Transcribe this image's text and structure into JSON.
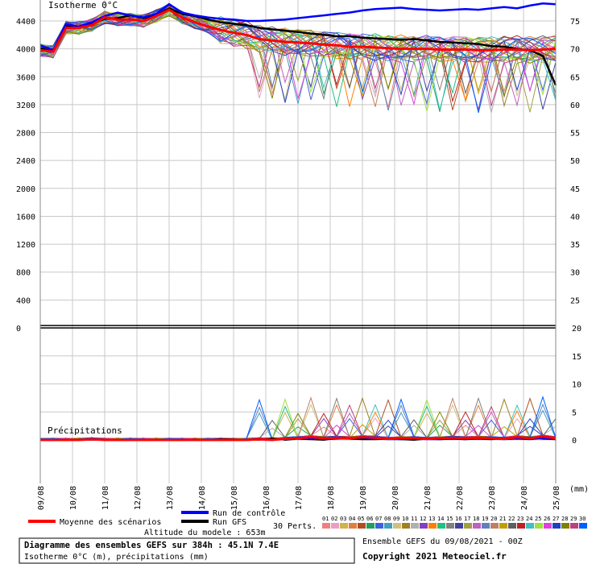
{
  "chart_data": {
    "type": "line",
    "x_dates": [
      "09/08",
      "10/08",
      "11/08",
      "12/08",
      "13/08",
      "14/08",
      "15/08",
      "16/08",
      "17/08",
      "18/08",
      "19/08",
      "20/08",
      "21/08",
      "22/08",
      "23/08",
      "24/08",
      "25/08"
    ],
    "x_unit": "(mm)",
    "upper": {
      "title": "Isotherme 0°C",
      "left_ticks": [
        0,
        400,
        800,
        1200,
        1600,
        2000,
        2400,
        2800,
        3200,
        3600,
        4000,
        4400
      ],
      "right_ticks": [
        25,
        30,
        35,
        40,
        45,
        50,
        55,
        60,
        65,
        70,
        75
      ],
      "ylim": [
        0,
        4700
      ],
      "mean_scenarios_m": [
        3980,
        3960,
        4300,
        4300,
        4340,
        4450,
        4420,
        4420,
        4400,
        4470,
        4560,
        4450,
        4380,
        4320,
        4270,
        4230,
        4200,
        4140,
        4120,
        4100,
        4090,
        4080,
        4060,
        4050,
        4030,
        4030,
        4020,
        4010,
        4000,
        4000,
        4000,
        3990,
        3990,
        3990,
        3980,
        3980,
        3990,
        3990,
        3980,
        3990,
        4000
      ],
      "control_run_m": [
        4050,
        3980,
        4350,
        4320,
        4380,
        4470,
        4520,
        4480,
        4450,
        4500,
        4640,
        4520,
        4480,
        4450,
        4430,
        4420,
        4400,
        4400,
        4410,
        4420,
        4440,
        4460,
        4480,
        4500,
        4520,
        4550,
        4570,
        4580,
        4590,
        4570,
        4560,
        4550,
        4560,
        4570,
        4560,
        4580,
        4600,
        4580,
        4620,
        4650,
        4640
      ],
      "gfs_run_m": [
        4010,
        3960,
        4320,
        4320,
        4360,
        4430,
        4440,
        4480,
        4440,
        4480,
        4580,
        4500,
        4470,
        4420,
        4380,
        4360,
        4340,
        4300,
        4280,
        4260,
        4240,
        4220,
        4200,
        4180,
        4180,
        4160,
        4150,
        4140,
        4130,
        4140,
        4120,
        4100,
        4090,
        4080,
        4070,
        4040,
        4030,
        4000,
        3980,
        3900,
        3480
      ]
    },
    "lower": {
      "title": "Précipitations",
      "ticks_mm": [
        0,
        5,
        10,
        15,
        20
      ],
      "ylim": [
        0,
        20
      ],
      "mean_scenarios_mm": [
        0,
        0,
        0,
        0,
        0.1,
        0,
        0,
        0,
        0,
        0,
        0,
        0,
        0,
        0,
        0,
        0,
        0,
        0.1,
        0,
        0.2,
        0.3,
        0.5,
        0.3,
        0.4,
        0.3,
        0.5,
        0.4,
        0.2,
        0.3,
        0.3,
        0.2,
        0.3,
        0.4,
        0.3,
        0.4,
        0.3,
        0.2,
        0.5,
        0.3,
        0.6,
        0.3
      ],
      "control_run_mm": [
        0,
        0,
        0,
        0,
        0,
        0,
        0,
        0,
        0,
        0,
        0,
        0,
        0,
        0,
        0.1,
        0,
        0,
        0.2,
        0,
        0.1,
        0.4,
        0.2,
        0.1,
        0.2,
        0.3,
        0.4,
        0.2,
        0.1,
        0.1,
        0.2,
        0.1,
        0.1,
        0.2,
        0.1,
        0.3,
        0.2,
        0.1,
        0.2,
        0.1,
        0.3,
        0.1
      ],
      "gfs_run_mm": [
        0,
        0,
        0,
        0,
        0,
        0,
        0,
        0,
        0,
        0,
        0,
        0,
        0.1,
        0,
        0.2,
        0.1,
        0,
        0,
        0.3,
        0,
        0.2,
        0.1,
        0,
        0.3,
        0.2,
        0.1,
        0.1,
        0.2,
        0.1,
        0,
        0.2,
        0.1,
        0.2,
        0.1,
        0.2,
        0.1,
        0.3,
        0.2,
        0.4,
        0.2,
        0.1
      ]
    },
    "perturbation_colors": [
      "#f08080",
      "#e6a0c8",
      "#d2b24c",
      "#e08040",
      "#b05020",
      "#20a060",
      "#4060e0",
      "#40a0c0",
      "#d0c080",
      "#a08020",
      "#b0b0b0",
      "#8040c0",
      "#ff8000",
      "#20c080",
      "#808080",
      "#4040a0",
      "#a0a040",
      "#c060c0",
      "#6080c0",
      "#c08060",
      "#c0a000",
      "#606060",
      "#c02020",
      "#40c0c0",
      "#a0e040",
      "#e040e0",
      "#2040c0",
      "#808000",
      "#c04080",
      "#0060ff"
    ],
    "legend": {
      "mean_label": "Moyenne des scénarios",
      "mean_color": "#ff0000",
      "control_label": "Run de contrôle",
      "control_color": "#0000ff",
      "gfs_label": "Run GFS",
      "gfs_color": "#000000",
      "perts_label": "30 Perts.",
      "perts_numbers": [
        "01",
        "02",
        "03",
        "04",
        "05",
        "06",
        "07",
        "08",
        "09",
        "10",
        "11",
        "12",
        "13",
        "14",
        "15",
        "16",
        "17",
        "18",
        "19",
        "20",
        "21",
        "22",
        "23",
        "24",
        "25",
        "26",
        "27",
        "28",
        "29",
        "30"
      ]
    }
  },
  "footer": {
    "altitude": "Altitude du modele : 653m",
    "diagram_title": "Diagramme des ensembles GEFS sur 384h : 45.1N 7.4E",
    "diagram_subtitle": "Isotherme 0°C (m), précipitations (mm)",
    "ensemble_run": "Ensemble GEFS du 09/08/2021 - 00Z",
    "copyright": "Copyright 2021 Meteociel.fr"
  }
}
